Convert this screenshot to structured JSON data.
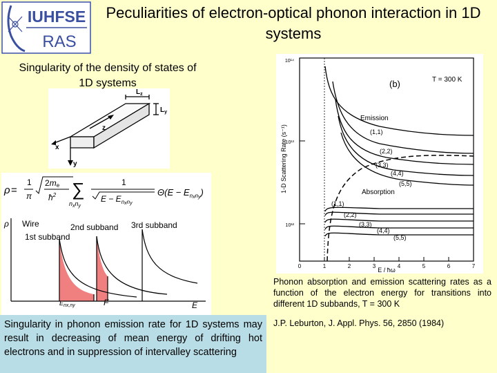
{
  "logo": {
    "line1": "IUHFSE",
    "line2": "RAS"
  },
  "title": "Peculiarities of electron-optical phonon interaction in 1D systems",
  "subtitle": "Singularity of the density of states of\n1D systems",
  "wire_diagram": {
    "lz": "L",
    "lz_sub": "z",
    "ly": "L",
    "ly_sub": "y",
    "z_axis": "z",
    "x_axis": "x",
    "y_axis": "y"
  },
  "dos_figure": {
    "rho": "ρ",
    "wire_label": "Wire",
    "band1": "1st subband",
    "band2": "2nd subband",
    "band3": "3rd subband",
    "f_label": "F",
    "e_label": "E",
    "fill_color": "#f08080"
  },
  "graph": {
    "panel_label": "(b)",
    "temp_label": "T = 300 K",
    "y_axis_label": "1-D Scattering Rate (s⁻¹)",
    "x_axis_label": "E / ħω",
    "y_ticks": [
      "10¹⁴",
      "10¹³",
      "10¹²"
    ],
    "x_ticks": [
      "0",
      "1",
      "2",
      "3",
      "4",
      "5",
      "6",
      "7"
    ],
    "emission_label": "Emission",
    "absorption_label": "Absorption",
    "emission_curves": [
      "(1,1)",
      "(2,2)",
      "(3,3)",
      "(4,4)",
      "(5,5)"
    ],
    "absorption_curves": [
      "(1,1)",
      "(2,2)",
      "(3,3)",
      "(4,4)",
      "(5,5)"
    ]
  },
  "caption": "Phonon absorption and emission scattering rates as a function of the electron energy for transitions into different 1D subbands, T = 300 K",
  "reference": "J.P. Leburton, J. Appl. Phys. 56, 2850 (1984)",
  "note": "Singularity in phonon emission rate for 1D systems may result in decreasing of mean energy of drifting hot electrons and in suppression of intervalley scattering"
}
